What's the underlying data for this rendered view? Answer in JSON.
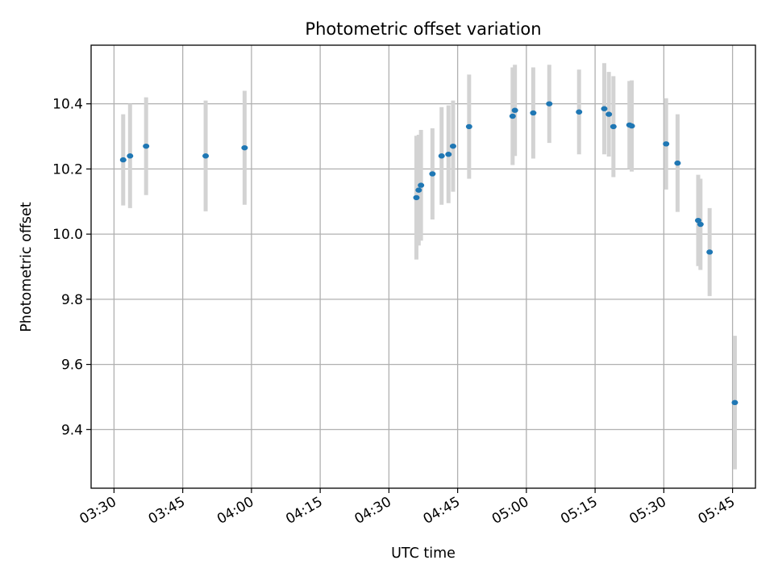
{
  "chart_data": {
    "type": "scatter",
    "title": "Photometric offset variation",
    "xlabel": "UTC time",
    "ylabel": "Photometric offset",
    "grid": true,
    "xlim": [
      "03:25",
      "05:50"
    ],
    "ylim": [
      9.22,
      10.58
    ],
    "x_ticks": [
      "03:30",
      "03:45",
      "04:00",
      "04:15",
      "04:30",
      "04:45",
      "05:00",
      "05:15",
      "05:30",
      "05:45"
    ],
    "y_ticks": [
      "9.4",
      "9.6",
      "9.8",
      "10.0",
      "10.2",
      "10.4"
    ],
    "marker_color": "#1f77b4",
    "errorbar_color": "#d3d3d3",
    "series": [
      {
        "points": [
          {
            "x": "03:32",
            "y": 10.228,
            "yerr": 0.14
          },
          {
            "x": "03:33:30",
            "y": 10.24,
            "yerr": 0.16
          },
          {
            "x": "03:37",
            "y": 10.27,
            "yerr": 0.15
          },
          {
            "x": "03:50",
            "y": 10.24,
            "yerr": 0.17
          },
          {
            "x": "03:58:30",
            "y": 10.265,
            "yerr": 0.175
          },
          {
            "x": "04:36",
            "y": 10.112,
            "yerr": 0.19
          },
          {
            "x": "04:36:30",
            "y": 10.135,
            "yerr": 0.17
          },
          {
            "x": "04:37",
            "y": 10.15,
            "yerr": 0.17
          },
          {
            "x": "04:39:30",
            "y": 10.185,
            "yerr": 0.14
          },
          {
            "x": "04:41:30",
            "y": 10.24,
            "yerr": 0.15
          },
          {
            "x": "04:43",
            "y": 10.245,
            "yerr": 0.15
          },
          {
            "x": "04:44",
            "y": 10.27,
            "yerr": 0.14
          },
          {
            "x": "04:47:30",
            "y": 10.33,
            "yerr": 0.16
          },
          {
            "x": "04:57",
            "y": 10.362,
            "yerr": 0.15
          },
          {
            "x": "04:57:30",
            "y": 10.38,
            "yerr": 0.14
          },
          {
            "x": "05:01:30",
            "y": 10.372,
            "yerr": 0.14
          },
          {
            "x": "05:05",
            "y": 10.4,
            "yerr": 0.12
          },
          {
            "x": "05:11:30",
            "y": 10.375,
            "yerr": 0.13
          },
          {
            "x": "05:17",
            "y": 10.385,
            "yerr": 0.14
          },
          {
            "x": "05:18",
            "y": 10.368,
            "yerr": 0.13
          },
          {
            "x": "05:19",
            "y": 10.33,
            "yerr": 0.155
          },
          {
            "x": "05:22:30",
            "y": 10.335,
            "yerr": 0.135
          },
          {
            "x": "05:23",
            "y": 10.332,
            "yerr": 0.14
          },
          {
            "x": "05:30:30",
            "y": 10.277,
            "yerr": 0.14
          },
          {
            "x": "05:33",
            "y": 10.218,
            "yerr": 0.15
          },
          {
            "x": "05:37:30",
            "y": 10.042,
            "yerr": 0.14
          },
          {
            "x": "05:38",
            "y": 10.03,
            "yerr": 0.14
          },
          {
            "x": "05:40",
            "y": 9.945,
            "yerr": 0.135
          },
          {
            "x": "05:45:30",
            "y": 9.483,
            "yerr": 0.205
          }
        ]
      }
    ]
  }
}
